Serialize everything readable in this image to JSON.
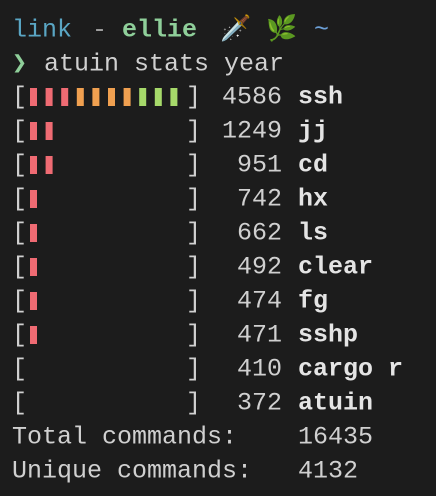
{
  "header": {
    "user": "link",
    "separator": "-",
    "host": "ellie",
    "icons": "🗡️ 🌿",
    "dir": "~"
  },
  "prompt": {
    "symbol": "❯",
    "command": "atuin stats year"
  },
  "bar_open": "[",
  "bar_close": "]",
  "rows": [
    {
      "count": 4586,
      "command": "ssh"
    },
    {
      "count": 1249,
      "command": "jj"
    },
    {
      "count": 951,
      "command": "cd"
    },
    {
      "count": 742,
      "command": "hx"
    },
    {
      "count": 662,
      "command": "ls"
    },
    {
      "count": 492,
      "command": "clear"
    },
    {
      "count": 474,
      "command": "fg"
    },
    {
      "count": 471,
      "command": "sshp"
    },
    {
      "count": 410,
      "command": "cargo r"
    },
    {
      "count": 372,
      "command": "atuin"
    }
  ],
  "totals": [
    {
      "label": "Total commands:",
      "value": 16435
    },
    {
      "label": "Unique commands:",
      "value": 4132
    }
  ]
}
